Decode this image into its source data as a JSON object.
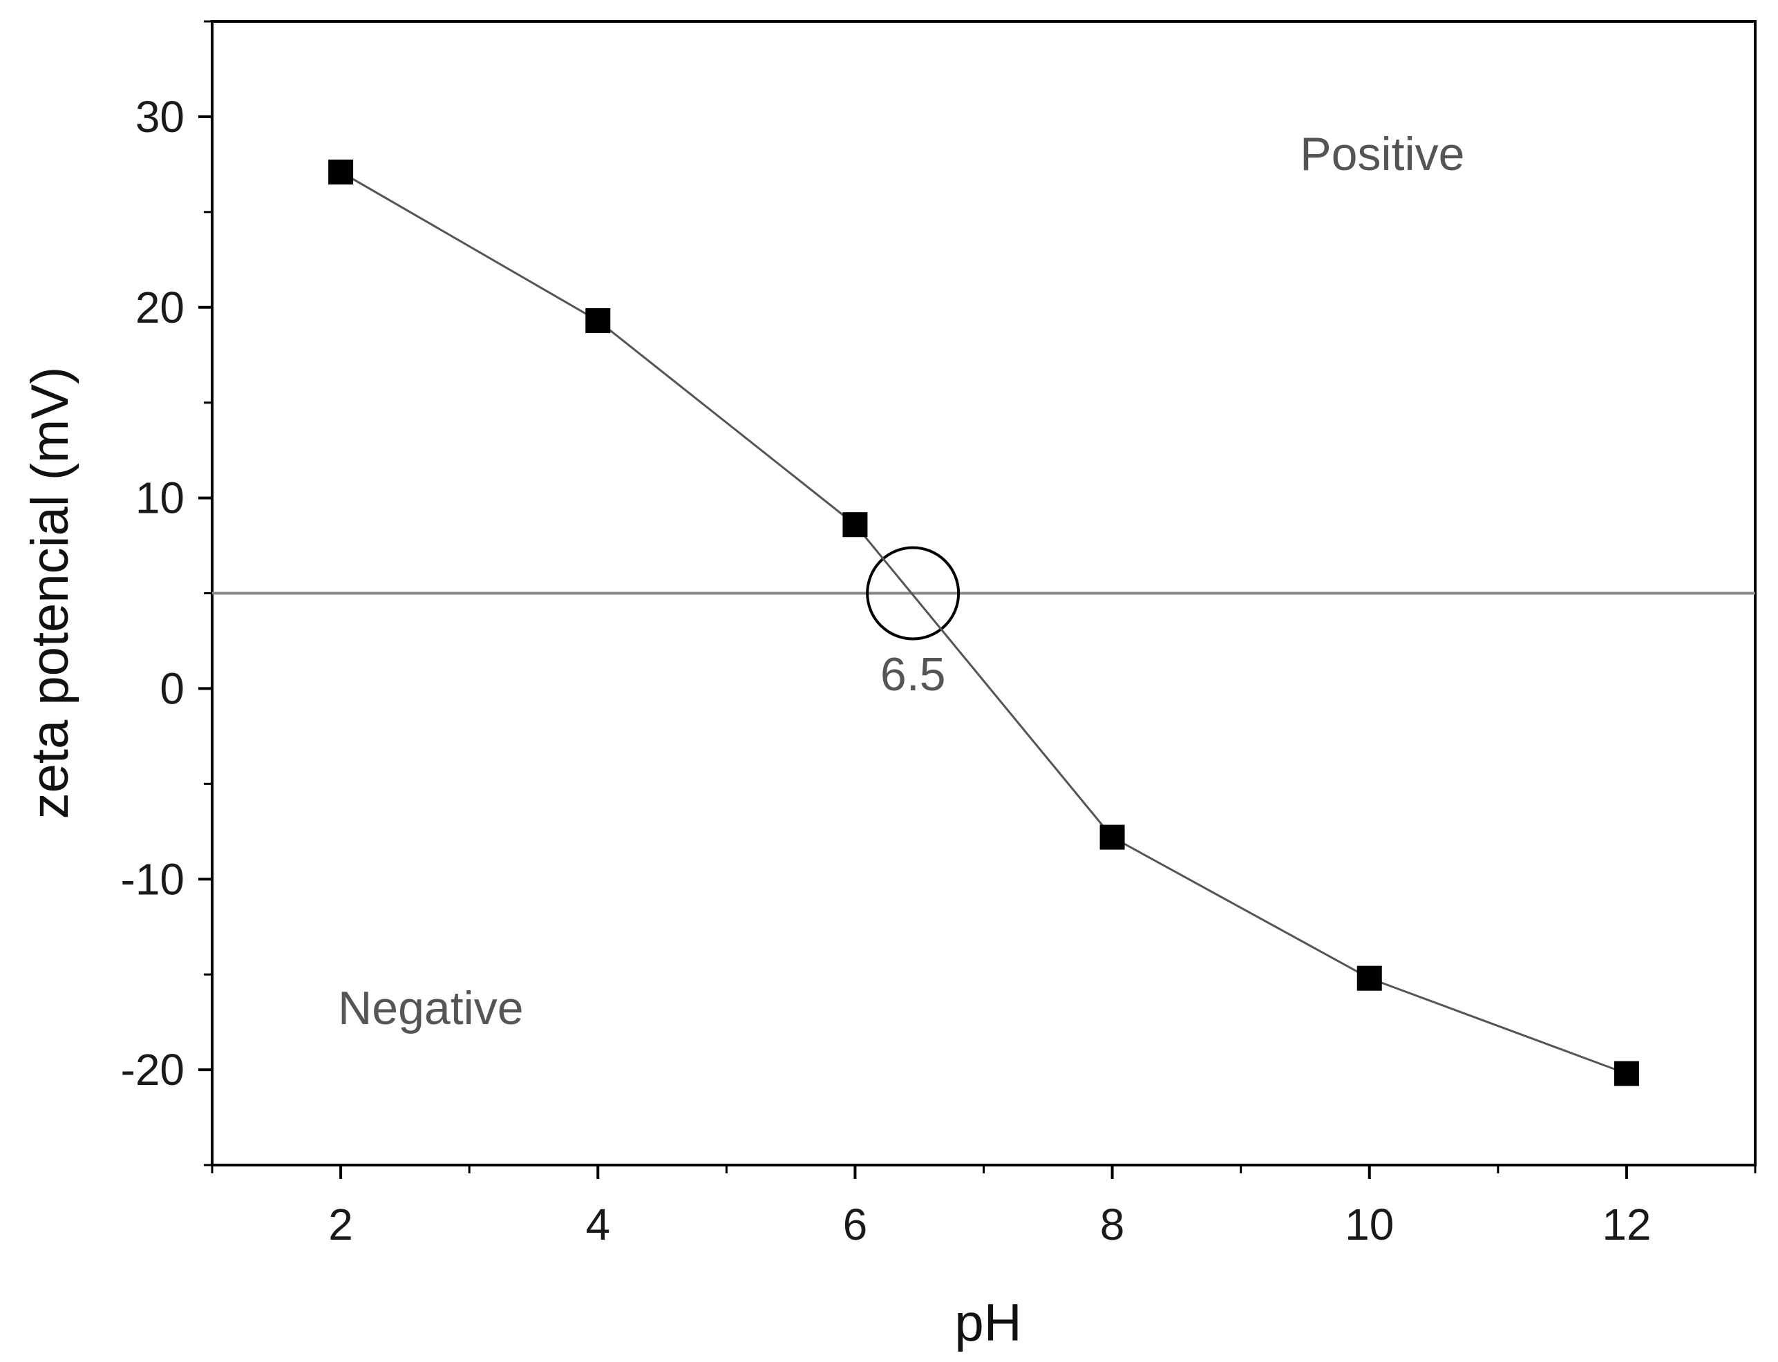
{
  "chart_data": {
    "type": "line",
    "title": "",
    "xlabel": "pH",
    "ylabel": "zeta potencial (mV)",
    "xlim": [
      1,
      13
    ],
    "ylim": [
      -25,
      35
    ],
    "x_major_ticks": [
      2,
      4,
      6,
      8,
      10,
      12
    ],
    "x_tick_labels": [
      "2",
      "4",
      "6",
      "8",
      "10",
      "12"
    ],
    "x_minor_ticks": [
      1,
      3,
      5,
      7,
      9,
      11,
      13
    ],
    "y_major_ticks": [
      -20,
      -10,
      0,
      10,
      20,
      30
    ],
    "y_tick_labels": [
      "-20",
      "-10",
      "0",
      "10",
      "20",
      "30"
    ],
    "y_minor_ticks": [
      -25,
      -15,
      -5,
      5,
      15,
      25,
      35
    ],
    "grid": false,
    "series": [
      {
        "name": "zeta potential",
        "marker": "square",
        "x": [
          2,
          4,
          6,
          8,
          10,
          12
        ],
        "values": [
          27.1,
          19.3,
          8.6,
          -7.8,
          -15.2,
          -20.2
        ]
      }
    ],
    "reference_line": {
      "y": 5
    },
    "crossing_point": {
      "x": 6.45,
      "y": 5
    },
    "annotations": [
      {
        "key": "positive",
        "text": "Positive",
        "x": 10.1,
        "y": 27.2
      },
      {
        "key": "negative",
        "text": "Negative",
        "x": 2.7,
        "y": -17.6
      },
      {
        "key": "iep",
        "text": "6.5",
        "x": 6.45,
        "y": -0.1
      }
    ],
    "colors": {
      "line": "#555555",
      "marker": "#000000",
      "reference": "#888888",
      "annotation": "#555555"
    }
  }
}
